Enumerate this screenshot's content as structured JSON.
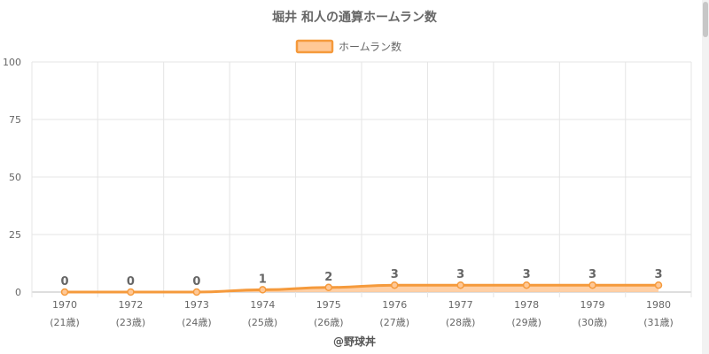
{
  "chart_data": {
    "type": "area",
    "title": "堀井 和人の通算ホームラン数",
    "legend": {
      "label": "ホームラン数",
      "position": "top-center",
      "fill_color": "#ffc896",
      "stroke_color": "#f59a3c"
    },
    "categories": [
      "1970",
      "1972",
      "1973",
      "1974",
      "1975",
      "1976",
      "1977",
      "1978",
      "1979",
      "1980"
    ],
    "sublabels": [
      "(21歳)",
      "(23歳)",
      "(24歳)",
      "(25歳)",
      "(26歳)",
      "(27歳)",
      "(28歳)",
      "(29歳)",
      "(30歳)",
      "(31歳)"
    ],
    "series": [
      {
        "name": "ホームラン数",
        "values": [
          0,
          0,
          0,
          1,
          2,
          3,
          3,
          3,
          3,
          3
        ]
      }
    ],
    "ylim": [
      0,
      100
    ],
    "yticks": [
      0,
      25,
      50,
      75,
      100
    ],
    "grid": true,
    "xlabel": "",
    "ylabel": ""
  },
  "credit": "@野球丼"
}
